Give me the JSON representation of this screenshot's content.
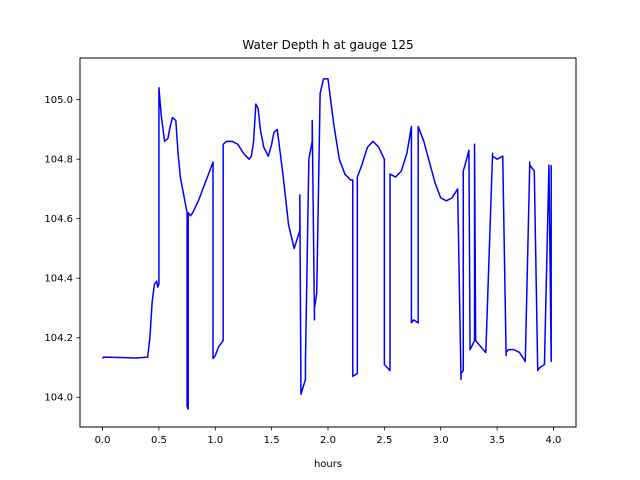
{
  "chart_data": {
    "type": "line",
    "title": "Water Depth h at gauge 125",
    "xlabel": "hours",
    "ylabel": "",
    "xlim": [
      -0.2,
      4.2
    ],
    "ylim": [
      103.9,
      105.14
    ],
    "xticks": [
      0.0,
      0.5,
      1.0,
      1.5,
      2.0,
      2.5,
      3.0,
      3.5,
      4.0
    ],
    "xtick_labels": [
      "0.0",
      "0.5",
      "1.0",
      "1.5",
      "2.0",
      "2.5",
      "3.0",
      "3.5",
      "4.0"
    ],
    "yticks": [
      104.0,
      104.2,
      104.4,
      104.6,
      104.8,
      105.0
    ],
    "ytick_labels": [
      "104.0",
      "104.2",
      "104.4",
      "104.6",
      "104.8",
      "105.0"
    ],
    "grid": false,
    "series": [
      {
        "color": "#0000ff",
        "x": [
          0.0,
          0.01,
          0.1,
          0.2,
          0.3,
          0.4,
          0.42,
          0.44,
          0.46,
          0.48,
          0.49,
          0.5,
          0.5,
          0.52,
          0.55,
          0.58,
          0.6,
          0.62,
          0.65,
          0.67,
          0.69,
          0.72,
          0.75,
          0.75,
          0.76,
          0.76,
          0.78,
          0.8,
          0.85,
          0.9,
          0.95,
          0.98,
          0.98,
          1.0,
          1.03,
          1.07,
          1.07,
          1.1,
          1.15,
          1.2,
          1.25,
          1.3,
          1.32,
          1.34,
          1.36,
          1.38,
          1.4,
          1.43,
          1.47,
          1.5,
          1.52,
          1.55,
          1.6,
          1.65,
          1.7,
          1.75,
          1.75,
          1.76,
          1.8,
          1.8,
          1.83,
          1.86,
          1.86,
          1.88,
          1.88,
          1.9,
          1.93,
          1.96,
          2.0,
          2.05,
          2.1,
          2.15,
          2.2,
          2.22,
          2.22,
          2.26,
          2.26,
          2.3,
          2.35,
          2.4,
          2.45,
          2.5,
          2.5,
          2.55,
          2.55,
          2.6,
          2.65,
          2.7,
          2.74,
          2.74,
          2.76,
          2.8,
          2.8,
          2.85,
          2.9,
          2.95,
          3.0,
          3.05,
          3.1,
          3.15,
          3.18,
          3.18,
          3.2,
          3.2,
          3.23,
          3.25,
          3.26,
          3.26,
          3.3,
          3.3,
          3.31,
          3.31,
          3.4,
          3.46,
          3.46,
          3.5,
          3.55,
          3.58,
          3.58,
          3.6,
          3.65,
          3.7,
          3.75,
          3.79,
          3.79,
          3.83,
          3.86,
          3.86,
          3.88,
          3.92,
          3.96,
          3.98,
          3.98
        ],
        "y": [
          104.13,
          104.135,
          104.134,
          104.133,
          104.132,
          104.135,
          104.2,
          104.32,
          104.38,
          104.39,
          104.37,
          104.38,
          105.04,
          104.95,
          104.86,
          104.87,
          104.91,
          104.94,
          104.93,
          104.82,
          104.74,
          104.68,
          104.62,
          103.97,
          103.96,
          104.62,
          104.61,
          104.62,
          104.66,
          104.71,
          104.76,
          104.79,
          104.13,
          104.14,
          104.17,
          104.19,
          104.85,
          104.86,
          104.86,
          104.85,
          104.82,
          104.8,
          104.81,
          104.86,
          104.985,
          104.97,
          104.9,
          104.84,
          104.81,
          104.85,
          104.89,
          104.9,
          104.75,
          104.58,
          104.5,
          104.56,
          104.68,
          104.01,
          104.06,
          104.12,
          104.8,
          104.86,
          104.93,
          104.26,
          104.3,
          104.35,
          105.02,
          105.07,
          105.07,
          104.92,
          104.8,
          104.75,
          104.73,
          104.73,
          104.07,
          104.08,
          104.74,
          104.78,
          104.84,
          104.86,
          104.84,
          104.8,
          104.11,
          104.09,
          104.75,
          104.74,
          104.76,
          104.82,
          104.91,
          104.25,
          104.26,
          104.25,
          104.91,
          104.86,
          104.79,
          104.72,
          104.67,
          104.66,
          104.67,
          104.7,
          104.06,
          104.08,
          104.09,
          104.76,
          104.8,
          104.83,
          104.17,
          104.16,
          104.19,
          104.85,
          104.19,
          104.19,
          104.15,
          104.82,
          104.81,
          104.8,
          104.81,
          104.14,
          104.15,
          104.16,
          104.16,
          104.15,
          104.12,
          104.79,
          104.78,
          104.76,
          104.1,
          104.09,
          104.1,
          104.11,
          104.78,
          104.12,
          104.78
        ]
      }
    ]
  }
}
